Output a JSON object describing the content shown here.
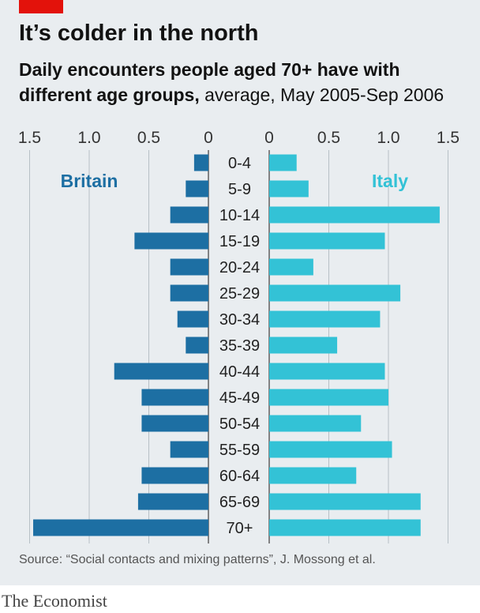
{
  "header": {
    "title": "It’s colder in the north",
    "subtitle_bold": "Daily encounters people aged 70+ have with different age groups,",
    "subtitle_rest": " average, May 2005-Sep 2006"
  },
  "source": "Source: “Social contacts and mixing patterns”, J. Mossong et al.",
  "footer": {
    "brand": "The Economist"
  },
  "colors": {
    "britain": "#1d6fa3",
    "italy": "#33c2d6",
    "brand_red": "#e3120b",
    "background": "#e9edf0"
  },
  "chart_data": {
    "type": "bar",
    "orientation": "horizontal-butterfly",
    "categories": [
      "0-4",
      "5-9",
      "10-14",
      "15-19",
      "20-24",
      "25-29",
      "30-34",
      "35-39",
      "40-44",
      "45-49",
      "50-54",
      "55-59",
      "60-64",
      "65-69",
      "70+"
    ],
    "series": [
      {
        "name": "Britain",
        "values": [
          0.12,
          0.19,
          0.32,
          0.62,
          0.32,
          0.32,
          0.26,
          0.19,
          0.79,
          0.56,
          0.56,
          0.32,
          0.56,
          0.59,
          1.47
        ]
      },
      {
        "name": "Italy",
        "values": [
          0.23,
          0.33,
          1.43,
          0.97,
          0.37,
          1.1,
          0.93,
          0.57,
          0.97,
          1.0,
          0.77,
          1.03,
          0.73,
          1.27,
          1.27
        ]
      }
    ],
    "left_ticks": [
      "1.5",
      "1.0",
      "0.5",
      "0"
    ],
    "right_ticks": [
      "0",
      "0.5",
      "1.0",
      "1.5"
    ],
    "xlim": [
      0,
      1.5
    ],
    "grid": true
  }
}
